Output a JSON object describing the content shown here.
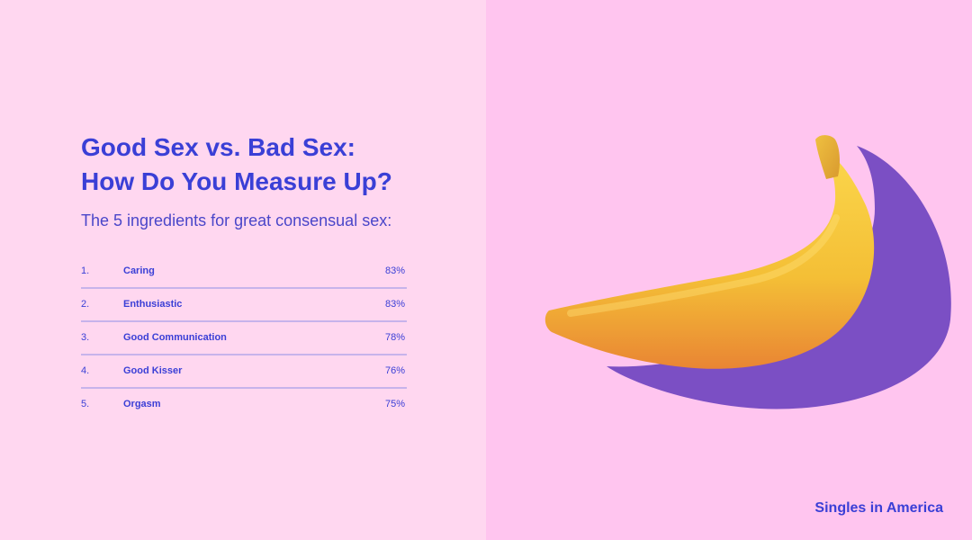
{
  "title_lines": [
    "Good Sex vs. Bad Sex:",
    "How Do You Measure Up?"
  ],
  "subtitle": "The 5 ingredients for great consensual sex:",
  "footer": "Singles in America",
  "colors": {
    "left_background": "#ffd7f0",
    "right_background": "#ffc5ef",
    "accent": "#3a3fd6",
    "divider": "#8f8fe6",
    "banana_yellow": "#f7c53a",
    "banana_shadow": "#7b4fc4"
  },
  "chart_data": {
    "type": "table",
    "title": "Good Sex vs. Bad Sex: How Do You Measure Up?",
    "subtitle": "The 5 ingredients for great consensual sex:",
    "grid": false,
    "rows": [
      {
        "rank": "1.",
        "label": "Caring",
        "value": 83,
        "display": "83%"
      },
      {
        "rank": "2.",
        "label": "Enthusiastic",
        "value": 83,
        "display": "83%"
      },
      {
        "rank": "3.",
        "label": "Good Communication",
        "value": 78,
        "display": "78%"
      },
      {
        "rank": "4.",
        "label": "Good Kisser",
        "value": 76,
        "display": "76%"
      },
      {
        "rank": "5.",
        "label": "Orgasm",
        "value": 75,
        "display": "75%"
      }
    ]
  }
}
